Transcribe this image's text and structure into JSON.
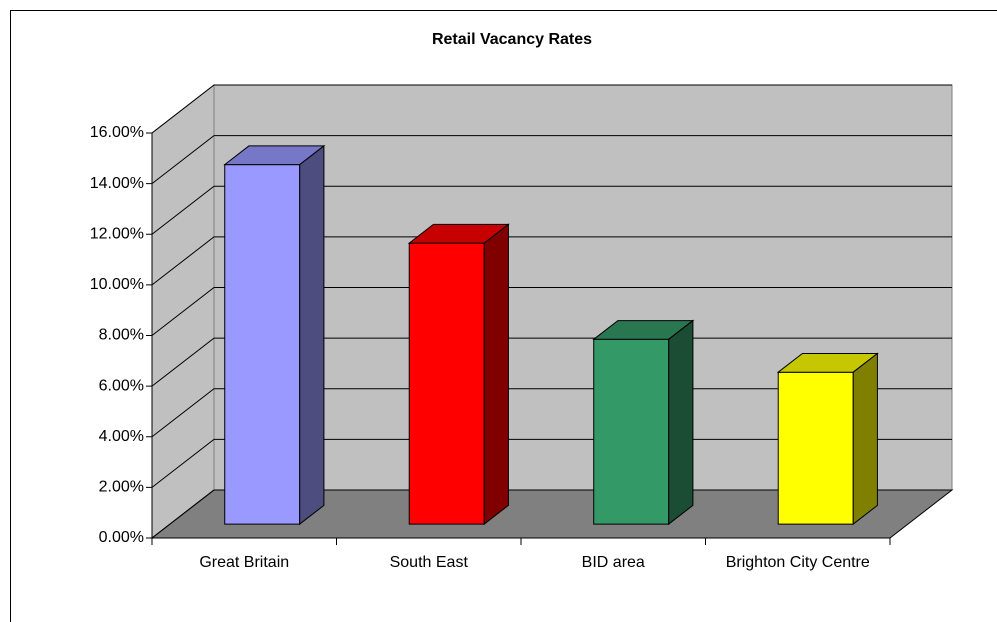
{
  "chart_data": {
    "type": "bar3d",
    "title": "Retail Vacancy Rates",
    "categories": [
      "Great Britain",
      "South East",
      "BID area",
      "Brighton City Centre"
    ],
    "values": [
      14.2,
      11.1,
      7.3,
      6.0
    ],
    "colors": [
      "#9999ff",
      "#ff0000",
      "#339966",
      "#ffff00"
    ],
    "ylim": [
      0,
      16
    ],
    "yticks": [
      {
        "value": 0,
        "label": "0.00%"
      },
      {
        "value": 2,
        "label": "2.00%"
      },
      {
        "value": 4,
        "label": "4.00%"
      },
      {
        "value": 6,
        "label": "6.00%"
      },
      {
        "value": 8,
        "label": "8.00%"
      },
      {
        "value": 10,
        "label": "10.00%"
      },
      {
        "value": 12,
        "label": "12.00%"
      },
      {
        "value": 14,
        "label": "14.00%"
      },
      {
        "value": 16,
        "label": "16.00%"
      }
    ],
    "grid": true
  }
}
